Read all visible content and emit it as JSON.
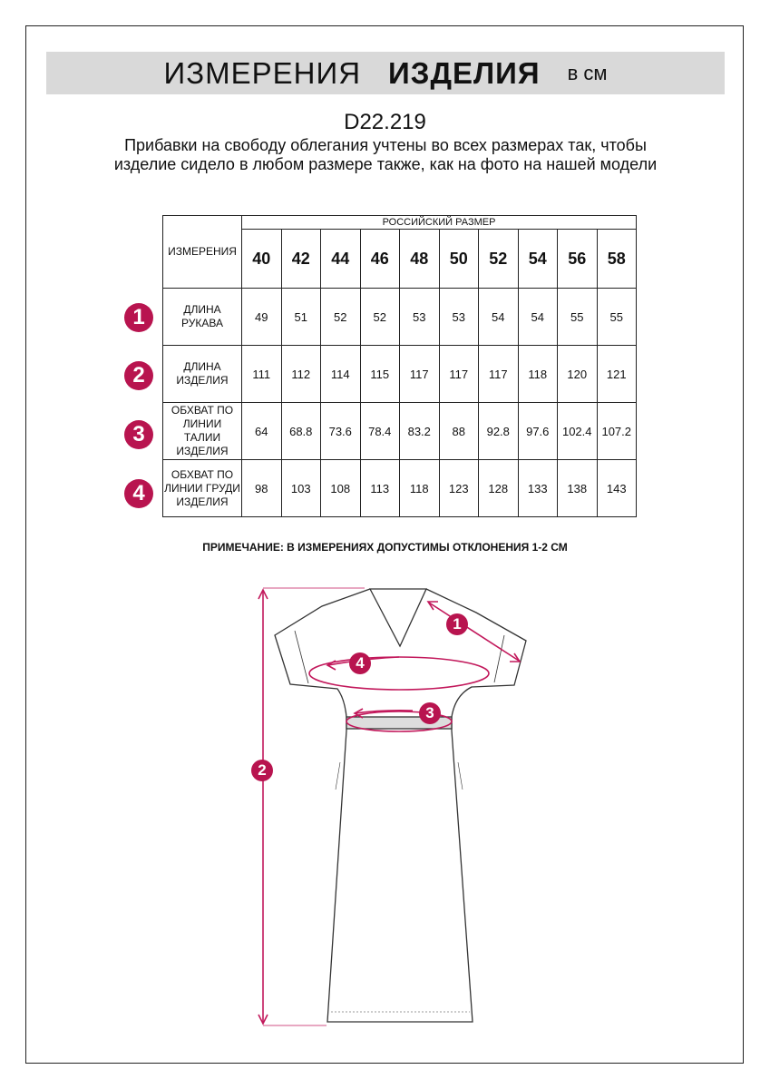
{
  "header": {
    "title_regular": "ИЗМЕРЕНИЯ",
    "title_bold": "ИЗДЕЛИЯ",
    "unit": "в см"
  },
  "product_code": "D22.219",
  "description": "Прибавки на свободу облегания учтены во всех размерах так, чтобы изделие сидело в любом размере также, как на фото на нашей модели",
  "table": {
    "measurements_header": "ИЗМЕРЕНИЯ",
    "size_header": "РОССИЙСКИЙ РАЗМЕР",
    "sizes": [
      "40",
      "42",
      "44",
      "46",
      "48",
      "50",
      "52",
      "54",
      "56",
      "58"
    ],
    "rows": [
      {
        "num": "1",
        "label": "ДЛИНА РУКАВА",
        "values": [
          "49",
          "51",
          "52",
          "52",
          "53",
          "53",
          "54",
          "54",
          "55",
          "55"
        ]
      },
      {
        "num": "2",
        "label": "ДЛИНА ИЗДЕЛИЯ",
        "values": [
          "111",
          "112",
          "114",
          "115",
          "117",
          "117",
          "117",
          "118",
          "120",
          "121"
        ]
      },
      {
        "num": "3",
        "label": "ОБХВАТ ПО ЛИНИИ ТАЛИИ ИЗДЕЛИЯ",
        "values": [
          "64",
          "68.8",
          "73.6",
          "78.4",
          "83.2",
          "88",
          "92.8",
          "97.6",
          "102.4",
          "107.2"
        ]
      },
      {
        "num": "4",
        "label": "ОБХВАТ ПО ЛИНИИ ГРУДИ ИЗДЕЛИЯ",
        "values": [
          "98",
          "103",
          "108",
          "113",
          "118",
          "123",
          "128",
          "133",
          "138",
          "143"
        ]
      }
    ]
  },
  "note": "ПРИМЕЧАНИЕ: В ИЗМЕРЕНИЯХ ДОПУСТИМЫ ОТКЛОНЕНИЯ 1-2 СМ",
  "diagram": {
    "markers": [
      "1",
      "2",
      "3",
      "4"
    ]
  },
  "colors": {
    "accent": "#b8144f",
    "banner": "#d9d9d9"
  }
}
